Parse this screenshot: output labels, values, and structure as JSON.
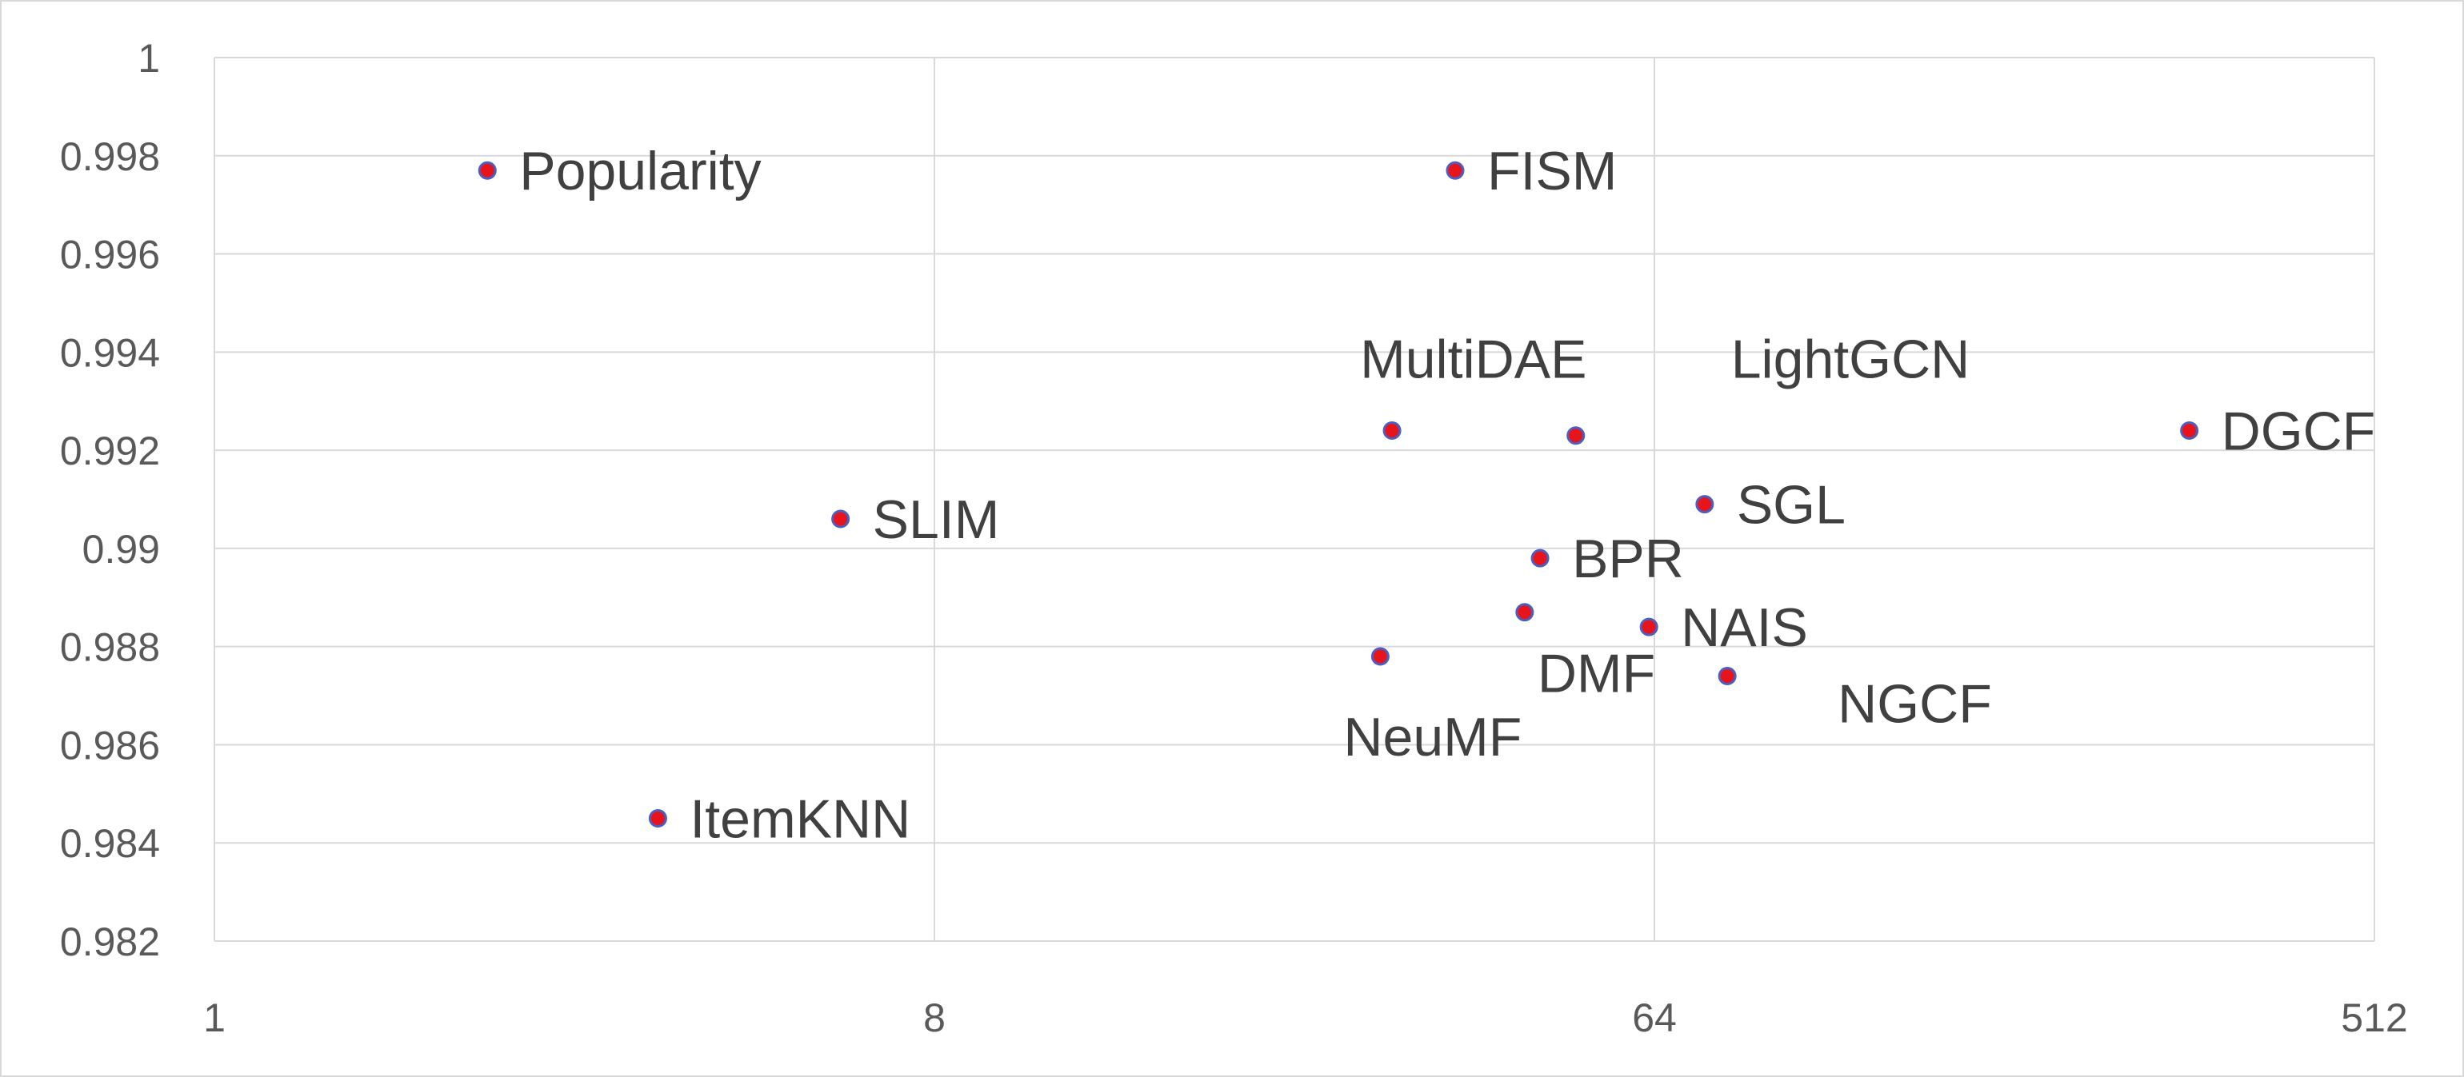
{
  "chart_data": {
    "type": "scatter",
    "title": "",
    "xlabel": "",
    "ylabel": "",
    "x_scale": "log2",
    "xlim": [
      1,
      512
    ],
    "ylim": [
      0.982,
      1
    ],
    "x_ticks": [
      {
        "value": 1,
        "label": "1"
      },
      {
        "value": 8,
        "label": "8"
      },
      {
        "value": 64,
        "label": "64"
      },
      {
        "value": 512,
        "label": "512"
      }
    ],
    "y_ticks": [
      {
        "value": 0.982,
        "label": "0.982"
      },
      {
        "value": 0.984,
        "label": "0.984"
      },
      {
        "value": 0.986,
        "label": "0.986"
      },
      {
        "value": 0.988,
        "label": "0.988"
      },
      {
        "value": 0.99,
        "label": "0.99"
      },
      {
        "value": 0.992,
        "label": "0.992"
      },
      {
        "value": 0.994,
        "label": "0.994"
      },
      {
        "value": 0.996,
        "label": "0.996"
      },
      {
        "value": 0.998,
        "label": "0.998"
      },
      {
        "value": 1,
        "label": "1"
      }
    ],
    "grid": true,
    "legend": "none",
    "marker_fill": "#e8141c",
    "marker_edge": "#4a5fc1",
    "points": [
      {
        "label": "Popularity",
        "x": 2.2,
        "y": 0.9977
      },
      {
        "label": "FISM",
        "x": 36,
        "y": 0.9977
      },
      {
        "label": "MultiDAE",
        "x": 30,
        "y": 0.9924
      },
      {
        "label": "LightGCN",
        "x": 51,
        "y": 0.9923
      },
      {
        "label": "DGCF",
        "x": 300,
        "y": 0.9924
      },
      {
        "label": "SLIM",
        "x": 6.1,
        "y": 0.9906
      },
      {
        "label": "SGL",
        "x": 74,
        "y": 0.9909
      },
      {
        "label": "BPR",
        "x": 46,
        "y": 0.9898
      },
      {
        "label": "DMF",
        "x": 44,
        "y": 0.9887
      },
      {
        "label": "NAIS",
        "x": 63,
        "y": 0.9884
      },
      {
        "label": "NeuMF",
        "x": 29,
        "y": 0.9878
      },
      {
        "label": "NGCF",
        "x": 79,
        "y": 0.9874
      },
      {
        "label": "ItemKNN",
        "x": 3.6,
        "y": 0.9845
      }
    ]
  }
}
